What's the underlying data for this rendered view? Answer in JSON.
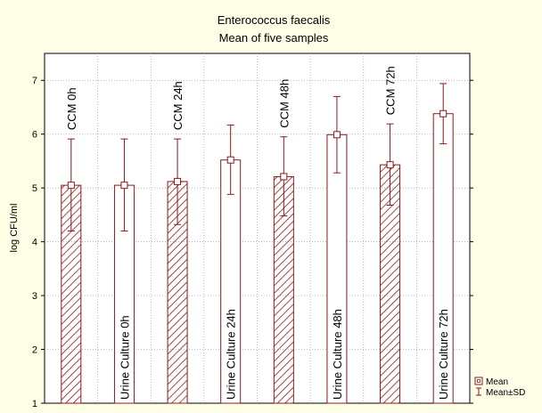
{
  "chart_data": {
    "type": "bar",
    "title": "Enterococcus faecalis",
    "subtitle": "Mean of five samples",
    "xlabel": "",
    "ylabel": "log CFU/ml",
    "ylim": [
      1,
      7.5
    ],
    "yticks": [
      1,
      2,
      3,
      4,
      5,
      6,
      7
    ],
    "grid": true,
    "legend_position": "bottom-right",
    "categories": [
      "CCM 0h",
      "Urine Culture 0h",
      "CCM 24h",
      "Urine Culture 24h",
      "CCM 48h",
      "Urine Culture 48h",
      "CCM 72h",
      "Urine Culture 72h"
    ],
    "bar_fill": [
      "hatched",
      "plain",
      "hatched",
      "plain",
      "hatched",
      "plain",
      "hatched",
      "plain"
    ],
    "label_side": [
      "above",
      "inside",
      "above",
      "inside",
      "above",
      "inside",
      "above",
      "inside"
    ],
    "series": [
      {
        "name": "Mean",
        "values": [
          5.05,
          5.05,
          5.12,
          5.52,
          5.21,
          5.99,
          5.43,
          6.38
        ]
      },
      {
        "name": "Mean±SD",
        "lower": [
          4.2,
          4.2,
          4.32,
          4.88,
          4.48,
          5.28,
          4.68,
          5.82
        ],
        "upper": [
          5.91,
          5.91,
          5.91,
          6.17,
          5.95,
          6.7,
          6.19,
          6.94
        ]
      }
    ],
    "colors": {
      "bar_stroke": "#8b1a1a",
      "background": "#fefee6",
      "plot_bg": "#ffffff",
      "grid": "#9a9a9a"
    }
  }
}
